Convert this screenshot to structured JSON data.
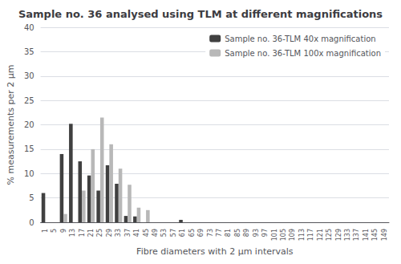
{
  "chart_data": {
    "type": "bar",
    "title": "Sample no. 36 analysed using TLM at different magnifications",
    "xlabel": "Fibre diameters with 2 μm intervals",
    "ylabel": "% measurements per 2 μm",
    "categories": [
      "1",
      "5",
      "9",
      "13",
      "17",
      "21",
      "25",
      "29",
      "33",
      "37",
      "41",
      "45",
      "49",
      "53",
      "57",
      "61",
      "65",
      "69",
      "73",
      "77",
      "81",
      "85",
      "89",
      "93",
      "97",
      "101",
      "105",
      "109",
      "113",
      "117",
      "121",
      "125",
      "129",
      "133",
      "137",
      "141",
      "145",
      "149"
    ],
    "series": [
      {
        "name": "Sample no. 36-TLM 40x magnification",
        "color": "#404040",
        "values": [
          6.0,
          0.0,
          14.0,
          20.2,
          12.5,
          9.6,
          6.5,
          11.7,
          7.9,
          1.3,
          1.2,
          0,
          0,
          0,
          0,
          0.5,
          0,
          0,
          0,
          0,
          0,
          0,
          0,
          0,
          0,
          0,
          0,
          0,
          0,
          0,
          0,
          0,
          0,
          0,
          0,
          0,
          0,
          0
        ]
      },
      {
        "name": "Sample no. 36-TLM 100x magnification",
        "color": "#b8b8b8",
        "values": [
          0,
          0,
          1.7,
          0,
          6.5,
          15.0,
          21.5,
          16.0,
          11.0,
          7.7,
          3.0,
          2.5,
          0,
          0,
          0,
          0,
          0,
          0,
          0,
          0,
          0,
          0,
          0,
          0,
          0,
          0,
          0,
          0,
          0,
          0,
          0,
          0,
          0,
          0,
          0,
          0,
          0,
          0
        ]
      }
    ],
    "ylim": [
      0,
      40
    ],
    "yticks": [
      0,
      5,
      10,
      15,
      20,
      25,
      30,
      35,
      40
    ],
    "grid": true,
    "legend": "upper right"
  }
}
